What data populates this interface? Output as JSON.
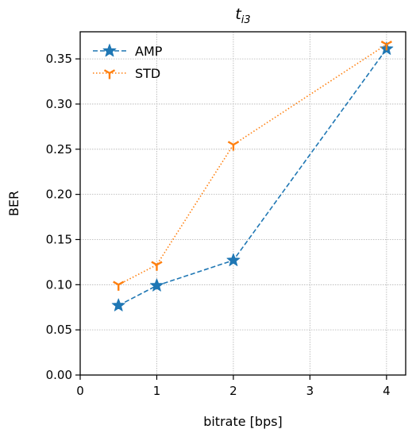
{
  "chart_data": {
    "type": "line",
    "title": "t",
    "title_subscript": "i3",
    "xlabel": "bitrate [bps]",
    "ylabel": "BER",
    "xlim": [
      0,
      4.25
    ],
    "ylim": [
      0,
      0.38
    ],
    "xticks": [
      0,
      1,
      2,
      3,
      4
    ],
    "yticks": [
      0.0,
      0.05,
      0.1,
      0.15,
      0.2,
      0.25,
      0.3,
      0.35
    ],
    "xtick_labels": [
      "0",
      "1",
      "2",
      "3",
      "4"
    ],
    "ytick_labels": [
      "0.00",
      "0.05",
      "0.10",
      "0.15",
      "0.20",
      "0.25",
      "0.30",
      "0.35"
    ],
    "grid": true,
    "legend_position": "top-left",
    "series": [
      {
        "name": "AMP",
        "color": "#1f77b4",
        "linestyle": "dashed",
        "marker": "star",
        "x": [
          0.5,
          1,
          2,
          4
        ],
        "y": [
          0.077,
          0.099,
          0.127,
          0.361
        ]
      },
      {
        "name": "STD",
        "color": "#ff7f0e",
        "linestyle": "dotted",
        "marker": "tri-down",
        "x": [
          0.5,
          1,
          2,
          4
        ],
        "y": [
          0.1,
          0.122,
          0.255,
          0.366
        ]
      }
    ]
  }
}
